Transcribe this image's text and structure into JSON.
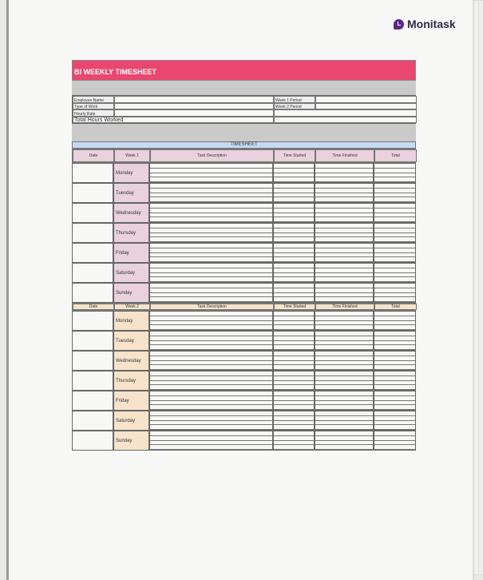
{
  "brand": {
    "name": "Monitask",
    "icon": "clock-bubble-icon",
    "color": "#5b2a86"
  },
  "title": "BI WEEKLY TIMESHEET",
  "info": {
    "employee_name": "Employee Name",
    "type_of_work": "Type of Work",
    "hourly_rate": "Hourly Rate",
    "total_hours": "Total Hours Worked",
    "week1_period": "Week 1 Period",
    "week2_period": "Week 2 Period"
  },
  "timesheet_label": "TIMESHEET",
  "week1": {
    "headers": [
      "Date",
      "Week 1",
      "Task Description",
      "Time Started",
      "Time Finished",
      "Total"
    ],
    "color": "#e9d1dd"
  },
  "week2": {
    "headers": [
      "Date",
      "Week 2",
      "Task Description",
      "Time Started",
      "Time Finished",
      "Total"
    ],
    "color": "#f6e3c9"
  },
  "days": [
    "Monday",
    "Tuesday",
    "Wednesday",
    "Thursday",
    "Friday",
    "Saturday",
    "Sunday"
  ],
  "colors": {
    "title": "#e9476f",
    "timesheet_header": "#c7d9f3"
  }
}
